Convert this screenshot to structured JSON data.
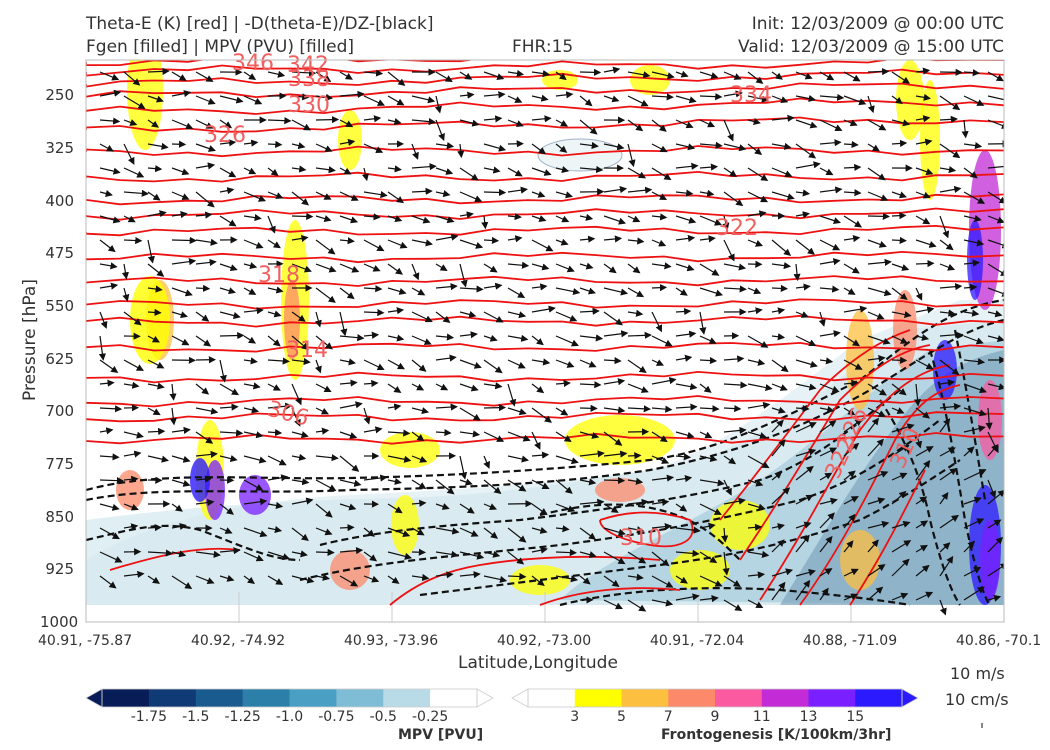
{
  "header": {
    "line1_left": "Theta-E (K) [red] | -D(theta-E)/DZ-[black]",
    "line2_left": "Fgen [filled] | MPV (PVU) [filled]",
    "line2_center": "FHR:15",
    "line1_right": "Init: 12/03/2009 @ 00:00 UTC",
    "line2_right": "Valid: 12/03/2009 @ 15:00 UTC"
  },
  "chart_data": {
    "type": "cross-section",
    "xlabel": "Latitude,Longitude",
    "ylabel": "Pressure [hPa]",
    "x_ticks": [
      "40.91, -75.87",
      "40.92, -74.92",
      "40.93, -73.96",
      "40.92, -73.00",
      "40.91, -72.04",
      "40.88, -71.09",
      "40.86, -70.1"
    ],
    "y_ticks": [
      250,
      325,
      400,
      475,
      550,
      625,
      700,
      775,
      850,
      925,
      1000
    ],
    "ylim": [
      1000,
      200
    ],
    "theta_e_contours": [
      {
        "label": "346",
        "p": 215
      },
      {
        "label": "342",
        "p": 220
      },
      {
        "label": "338",
        "p": 233
      },
      {
        "label": "334",
        "p": 248
      },
      {
        "label": "330",
        "p": 265
      },
      {
        "label": "326",
        "p": 325
      },
      {
        "label": "322",
        "p": 430
      },
      {
        "label": "318",
        "p": 530
      },
      {
        "label": "314",
        "p": 605
      },
      {
        "label": "306",
        "p": 690
      },
      {
        "label": "310",
        "p": 895
      },
      {
        "label": "322",
        "p": 790
      },
      {
        "label": "326",
        "p": 760
      },
      {
        "label": "310",
        "p": 795
      }
    ],
    "mpv_colorbar": {
      "title": "MPV [PVU]",
      "ticks": [
        "-1.75",
        "-1.5",
        "-1.25",
        "-1.0",
        "-0.75",
        "-0.5",
        "-0.25"
      ],
      "colors": [
        "#081d58",
        "#0f3a75",
        "#1a5b8f",
        "#2b7fa8",
        "#4aa0c4",
        "#7fbcd6",
        "#b9dbe7",
        "#ffffff"
      ]
    },
    "fgen_colorbar": {
      "title": "Frontogenesis [K/100km/3hr]",
      "ticks": [
        "3",
        "5",
        "7",
        "9",
        "11",
        "13",
        "15"
      ],
      "colors": [
        "#ffffff",
        "#ffff00",
        "#fdbf3f",
        "#fc8a6a",
        "#fb5aa0",
        "#c22bd6",
        "#7a1fff",
        "#2c1aff"
      ]
    },
    "wind_reference": {
      "label1": "10 m/s",
      "label2": "10 cm/s"
    }
  }
}
